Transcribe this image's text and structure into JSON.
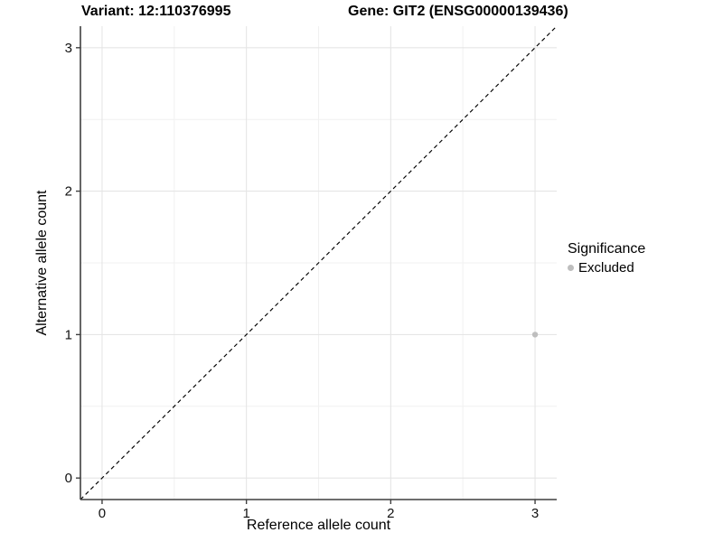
{
  "chart_data": {
    "type": "scatter",
    "title_left": "Variant: 12:110376995",
    "title_right": "Gene: GIT2 (ENSG00000139436)",
    "xlabel": "Reference allele count",
    "ylabel": "Alternative allele count",
    "x_ticks": [
      0,
      1,
      2,
      3
    ],
    "y_ticks": [
      0,
      1,
      2,
      3
    ],
    "x_minor": [
      0.5,
      1.5,
      2.5
    ],
    "y_minor": [
      0.5,
      1.5,
      2.5
    ],
    "xlim": [
      -0.15,
      3.15
    ],
    "ylim": [
      -0.15,
      3.15
    ],
    "grid": {
      "major_color": "#e5e5e5",
      "minor_color": "#f1f1f1",
      "background": "#ffffff"
    },
    "axis_color": "#3f3f3f",
    "tick_label_color": "#111111",
    "identity_line": {
      "slope": 1,
      "intercept": 0,
      "style": "dashed",
      "color": "#000000"
    },
    "points": [
      {
        "x": 3,
        "y": 1,
        "series": "Excluded",
        "color": "#bebebe"
      }
    ],
    "legend": {
      "title": "Significance",
      "position": "right",
      "entries": [
        {
          "label": "Excluded",
          "color": "#bebebe"
        }
      ]
    }
  }
}
